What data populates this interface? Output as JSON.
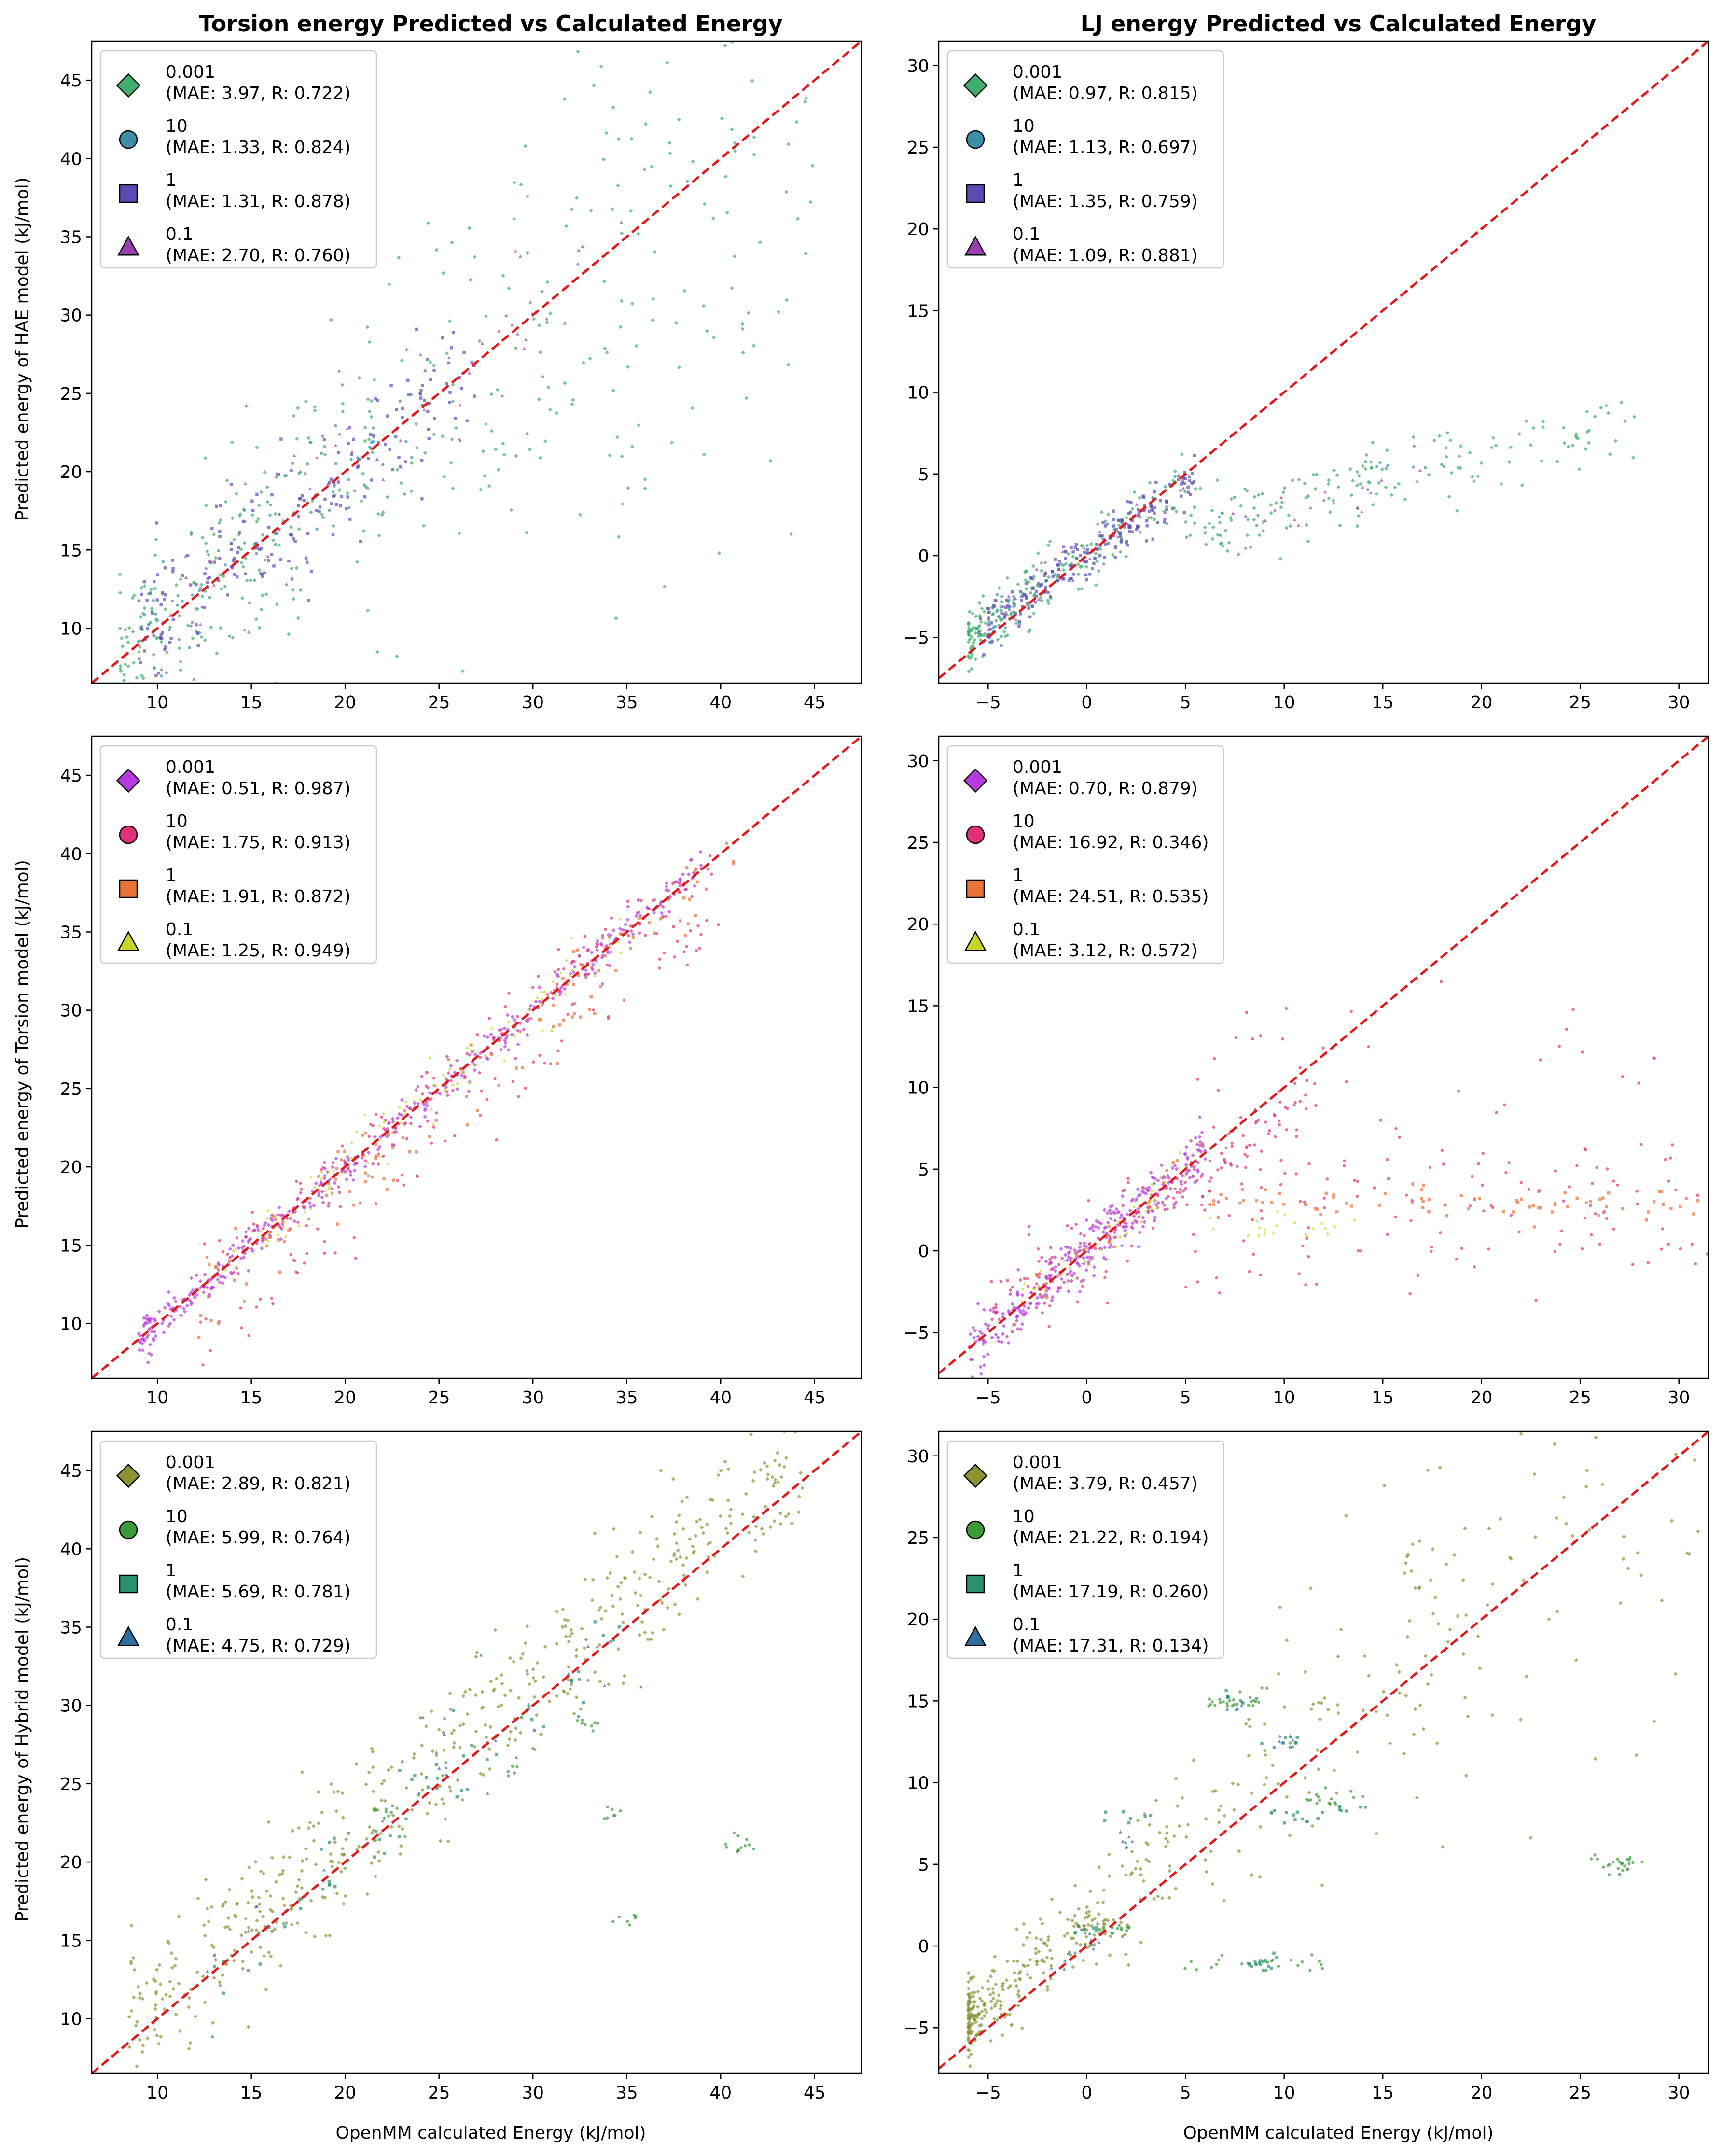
{
  "figure": {
    "column_titles": [
      "Torsion energy Predicted vs Calculated Energy",
      "LJ energy Predicted vs Calculated Energy"
    ],
    "xlabel": "OpenMM calculated Energy (kJ/mol)",
    "ylabels": [
      "Predicted energy of HAE model (kJ/mol)",
      "Predicted energy of Torsion model (kJ/mol)",
      "Predicted energy of Hybrid model (kJ/mol)"
    ],
    "reference_line_color": "#e31a1c"
  },
  "chart_data": [
    {
      "type": "scatter",
      "row": 0,
      "col": 0,
      "kind": "torsion",
      "xlim": [
        6.5,
        47.5
      ],
      "ylim": [
        6.5,
        47.5
      ],
      "xticks": [
        10,
        15,
        20,
        25,
        30,
        35,
        40,
        45
      ],
      "yticks": [
        10,
        15,
        20,
        25,
        30,
        35,
        40,
        45
      ],
      "series": [
        {
          "name": "0.001",
          "marker": "diamond",
          "color": "#3fae6c",
          "mae": "3.97",
          "r": "0.722"
        },
        {
          "name": "10",
          "marker": "circle",
          "color": "#3d8fa8",
          "mae": "1.33",
          "r": "0.824"
        },
        {
          "name": "1",
          "marker": "square",
          "color": "#5a4cb5",
          "mae": "1.31",
          "r": "0.878"
        },
        {
          "name": "0.1",
          "marker": "triangle",
          "color": "#9b3fb0",
          "mae": "2.70",
          "r": "0.760"
        }
      ]
    },
    {
      "type": "scatter",
      "row": 0,
      "col": 1,
      "kind": "lj",
      "xlim": [
        -7.5,
        31.5
      ],
      "ylim": [
        -7.8,
        31.5
      ],
      "xticks": [
        -5,
        0,
        5,
        10,
        15,
        20,
        25,
        30
      ],
      "yticks": [
        -5,
        0,
        5,
        10,
        15,
        20,
        25,
        30
      ],
      "series": [
        {
          "name": "0.001",
          "marker": "diamond",
          "color": "#3fae6c",
          "mae": "0.97",
          "r": "0.815"
        },
        {
          "name": "10",
          "marker": "circle",
          "color": "#3d8fa8",
          "mae": "1.13",
          "r": "0.697"
        },
        {
          "name": "1",
          "marker": "square",
          "color": "#5a4cb5",
          "mae": "1.35",
          "r": "0.759"
        },
        {
          "name": "0.1",
          "marker": "triangle",
          "color": "#9b3fb0",
          "mae": "1.09",
          "r": "0.881"
        }
      ]
    },
    {
      "type": "scatter",
      "row": 1,
      "col": 0,
      "kind": "torsion",
      "xlim": [
        6.5,
        47.5
      ],
      "ylim": [
        6.5,
        47.5
      ],
      "xticks": [
        10,
        15,
        20,
        25,
        30,
        35,
        40,
        45
      ],
      "yticks": [
        10,
        15,
        20,
        25,
        30,
        35,
        40,
        45
      ],
      "series": [
        {
          "name": "0.001",
          "marker": "diamond",
          "color": "#b73ae0",
          "mae": "0.51",
          "r": "0.987"
        },
        {
          "name": "10",
          "marker": "circle",
          "color": "#e0307a",
          "mae": "1.75",
          "r": "0.913"
        },
        {
          "name": "1",
          "marker": "square",
          "color": "#e8743a",
          "mae": "1.91",
          "r": "0.872"
        },
        {
          "name": "0.1",
          "marker": "triangle",
          "color": "#c8d62a",
          "mae": "1.25",
          "r": "0.949"
        }
      ]
    },
    {
      "type": "scatter",
      "row": 1,
      "col": 1,
      "kind": "lj",
      "xlim": [
        -7.5,
        31.5
      ],
      "ylim": [
        -7.8,
        31.5
      ],
      "xticks": [
        -5,
        0,
        5,
        10,
        15,
        20,
        25,
        30
      ],
      "yticks": [
        -5,
        0,
        5,
        10,
        15,
        20,
        25,
        30
      ],
      "series": [
        {
          "name": "0.001",
          "marker": "diamond",
          "color": "#b73ae0",
          "mae": "0.70",
          "r": "0.879"
        },
        {
          "name": "10",
          "marker": "circle",
          "color": "#e0307a",
          "mae": "16.92",
          "r": "0.346"
        },
        {
          "name": "1",
          "marker": "square",
          "color": "#e8743a",
          "mae": "24.51",
          "r": "0.535"
        },
        {
          "name": "0.1",
          "marker": "triangle",
          "color": "#c8d62a",
          "mae": "3.12",
          "r": "0.572"
        }
      ]
    },
    {
      "type": "scatter",
      "row": 2,
      "col": 0,
      "kind": "torsion",
      "xlim": [
        6.5,
        47.5
      ],
      "ylim": [
        6.5,
        47.5
      ],
      "xticks": [
        10,
        15,
        20,
        25,
        30,
        35,
        40,
        45
      ],
      "yticks": [
        10,
        15,
        20,
        25,
        30,
        35,
        40,
        45
      ],
      "series": [
        {
          "name": "0.001",
          "marker": "diamond",
          "color": "#8c9230",
          "mae": "2.89",
          "r": "0.821"
        },
        {
          "name": "10",
          "marker": "circle",
          "color": "#3a9a36",
          "mae": "5.99",
          "r": "0.764"
        },
        {
          "name": "1",
          "marker": "square",
          "color": "#2a9070",
          "mae": "5.69",
          "r": "0.781"
        },
        {
          "name": "0.1",
          "marker": "triangle",
          "color": "#2c6fa0",
          "mae": "4.75",
          "r": "0.729"
        }
      ]
    },
    {
      "type": "scatter",
      "row": 2,
      "col": 1,
      "kind": "lj",
      "xlim": [
        -7.5,
        31.5
      ],
      "ylim": [
        -7.8,
        31.5
      ],
      "xticks": [
        -5,
        0,
        5,
        10,
        15,
        20,
        25,
        30
      ],
      "yticks": [
        -5,
        0,
        5,
        10,
        15,
        20,
        25,
        30
      ],
      "series": [
        {
          "name": "0.001",
          "marker": "diamond",
          "color": "#8c9230",
          "mae": "3.79",
          "r": "0.457"
        },
        {
          "name": "10",
          "marker": "circle",
          "color": "#3a9a36",
          "mae": "21.22",
          "r": "0.194"
        },
        {
          "name": "1",
          "marker": "square",
          "color": "#2a9070",
          "mae": "17.19",
          "r": "0.260"
        },
        {
          "name": "0.1",
          "marker": "triangle",
          "color": "#2c6fa0",
          "mae": "17.31",
          "r": "0.134"
        }
      ]
    }
  ]
}
